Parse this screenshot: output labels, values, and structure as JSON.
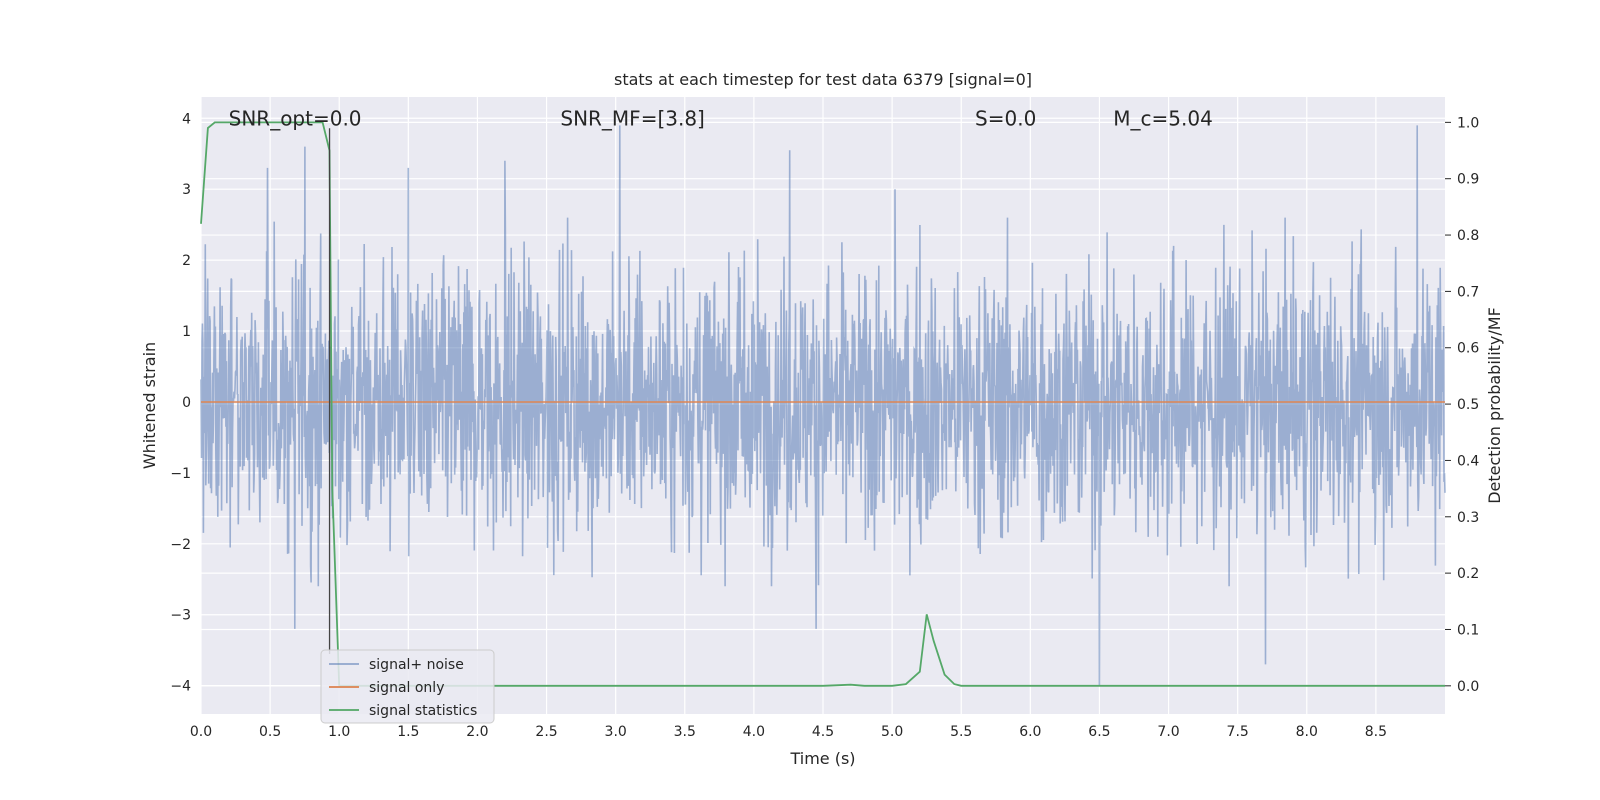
{
  "chart_data": {
    "type": "line",
    "title": "stats at each timestep for test data 6379 [signal=0]",
    "xlabel": "Time (s)",
    "ylabel": "Whitened strain",
    "ylabel_right": "Detection probability/MF",
    "xlim": [
      0.0,
      9.0
    ],
    "ylim": [
      -4.4,
      4.3
    ],
    "ylim_right": [
      -0.05,
      1.045
    ],
    "x_ticks": [
      0.0,
      0.5,
      1.0,
      1.5,
      2.0,
      2.5,
      3.0,
      3.5,
      4.0,
      4.5,
      5.0,
      5.5,
      6.0,
      6.5,
      7.0,
      7.5,
      8.0,
      8.5
    ],
    "y_ticks": [
      -4,
      -3,
      -2,
      -1,
      0,
      1,
      2,
      3,
      4
    ],
    "y_ticks_right": [
      0.0,
      0.1,
      0.2,
      0.3,
      0.4,
      0.5,
      0.6,
      0.7,
      0.8,
      0.9,
      1.0
    ],
    "x_tick_labels": [
      "0.0",
      "0.5",
      "1.0",
      "1.5",
      "2.0",
      "2.5",
      "3.0",
      "3.5",
      "4.0",
      "4.5",
      "5.0",
      "5.5",
      "6.0",
      "6.5",
      "7.0",
      "7.5",
      "8.0",
      "8.5"
    ],
    "y_tick_labels": [
      "−4",
      "−3",
      "−2",
      "−1",
      "0",
      "1",
      "2",
      "3",
      "4"
    ],
    "y_tick_labels_right": [
      "0.0",
      "0.1",
      "0.2",
      "0.3",
      "0.4",
      "0.5",
      "0.6",
      "0.7",
      "0.8",
      "0.9",
      "1.0"
    ],
    "grid": true,
    "legend_position": "lower-left",
    "annotations": [
      {
        "name": "snr-opt",
        "text": "SNR_opt=0.0",
        "x": 0.2,
        "y": 4.0
      },
      {
        "name": "snr-mf",
        "text": "SNR_MF=[3.8]",
        "x": 2.6,
        "y": 4.0
      },
      {
        "name": "s-value",
        "text": "S=0.0",
        "x": 5.6,
        "y": 4.0
      },
      {
        "name": "mc-value",
        "text": "M_c=5.04",
        "x": 6.6,
        "y": 4.0
      }
    ],
    "vertical_marker_x": 0.93,
    "series": [
      {
        "name": "signal+ noise",
        "axis": "left",
        "color": "#4c72b0",
        "alpha": 0.5,
        "description_kind": "noise",
        "x_range": [
          0.0,
          9.0
        ],
        "typical_amplitude": 1.5,
        "peak_values": [
          {
            "x": 0.48,
            "y": 3.3
          },
          {
            "x": 0.75,
            "y": 3.6
          },
          {
            "x": 1.5,
            "y": 3.3
          },
          {
            "x": 2.2,
            "y": 3.4
          },
          {
            "x": 3.03,
            "y": 3.9
          },
          {
            "x": 4.26,
            "y": 3.55
          },
          {
            "x": 5.02,
            "y": 3.0
          },
          {
            "x": 7.7,
            "y": -3.7
          },
          {
            "x": 6.5,
            "y": -4.0
          },
          {
            "x": 8.8,
            "y": 3.9
          },
          {
            "x": 0.68,
            "y": -3.2
          },
          {
            "x": 4.45,
            "y": -3.2
          }
        ]
      },
      {
        "name": "signal only",
        "axis": "left",
        "color": "#dd8452",
        "x": [
          0.0,
          9.0
        ],
        "y": [
          0.0,
          0.0
        ]
      },
      {
        "name": "signal statistics",
        "axis": "right",
        "color": "#55a868",
        "x": [
          0.0,
          0.05,
          0.1,
          0.2,
          0.3,
          0.5,
          0.7,
          0.88,
          0.93,
          0.95,
          1.0,
          1.5,
          2.0,
          3.0,
          4.0,
          4.5,
          4.7,
          4.8,
          5.0,
          5.1,
          5.2,
          5.25,
          5.3,
          5.38,
          5.45,
          5.5,
          6.0,
          7.0,
          8.0,
          9.0
        ],
        "y": [
          0.82,
          0.99,
          1.0,
          1.0,
          1.0,
          1.0,
          1.0,
          1.0,
          0.95,
          0.35,
          0.0,
          0.0,
          0.0,
          0.0,
          0.0,
          0.0,
          0.002,
          0.0,
          0.0,
          0.003,
          0.025,
          0.127,
          0.08,
          0.02,
          0.003,
          0.0,
          0.0,
          0.0,
          0.0,
          0.0
        ]
      }
    ]
  }
}
